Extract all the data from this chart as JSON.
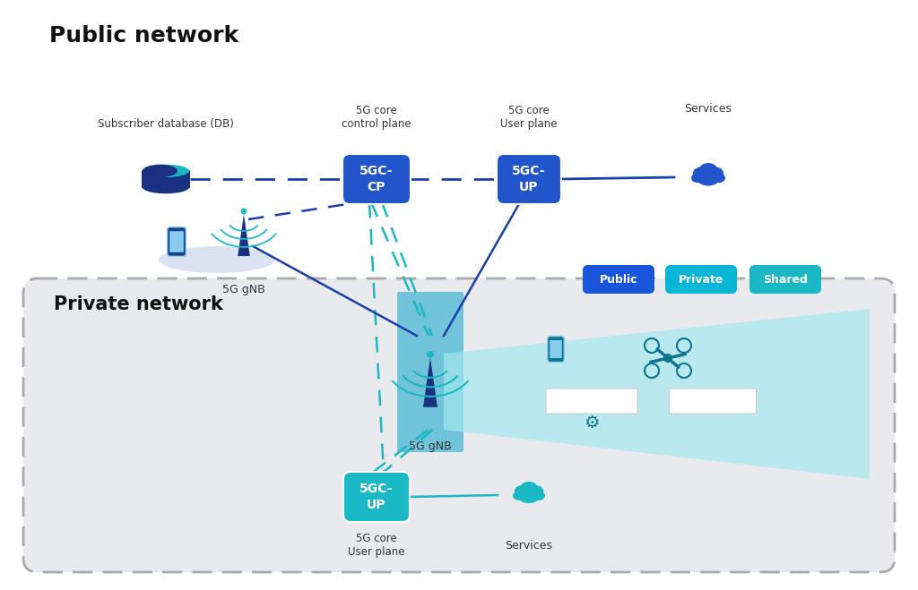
{
  "title": "Public network",
  "private_title": "Private network",
  "bg_color": "#ffffff",
  "box_5gc_cp": "5GC-\nCP",
  "box_5gc_up_public": "5GC-\nUP",
  "box_5gc_up_private": "5GC-\nUP",
  "label_sub_db": "Subscriber database (DB)",
  "label_cp": "5G core\ncontrol plane",
  "label_up_pub": "5G core\nUser plane",
  "label_services_pub": "Services",
  "label_5gc_up_priv": "5G core\nUser plane",
  "label_services_priv": "Services",
  "gnb_label_public": "5G gNB",
  "gnb_label_private": "5G gNB",
  "legend_public": "Public",
  "legend_private": "Private",
  "legend_shared": "Shared",
  "color_blue_box": "#2255cc",
  "color_teal_box": "#1ab8c4",
  "color_teal_line": "#1ab8c4",
  "color_blue_line": "#1a3faa",
  "color_blue_dark": "#1a3080",
  "color_teal_dark": "#0e7490",
  "color_private_bg": "#e8eaed",
  "color_legend_public": "#1a56db",
  "color_legend_private": "#06b6d4",
  "color_legend_shared": "#1ab8c4",
  "color_cloud_pub": "#2255cc",
  "color_cloud_priv": "#1ab8c4",
  "color_db_dark": "#1a3080",
  "color_db_teal": "#1ab8c4",
  "color_fan": "#a5e8f0",
  "color_tower_bg": "#5bbdd6"
}
